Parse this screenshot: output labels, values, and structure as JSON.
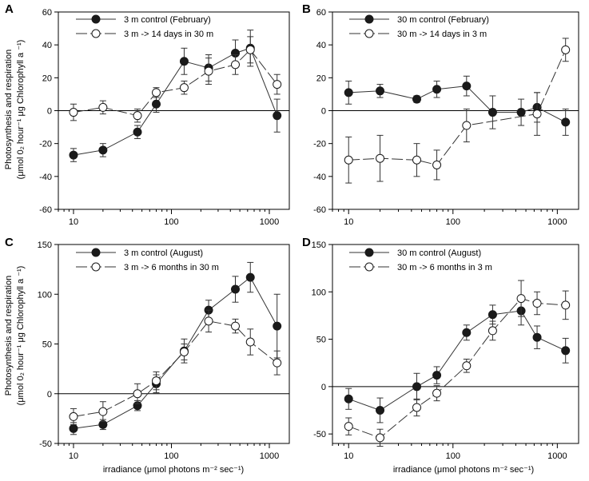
{
  "chart_data": [
    {
      "panel": "A",
      "type": "line",
      "xscale": "log",
      "xlim": [
        7,
        1600
      ],
      "ylim": [
        -60,
        60
      ],
      "xticks": [
        10,
        100,
        1000
      ],
      "xtick_labels": [
        "10",
        "100",
        "1000"
      ],
      "yticks": [
        -60,
        -40,
        -20,
        0,
        20,
        40,
        60
      ],
      "ytick_labels": [
        "-60",
        "-40",
        "-20",
        "0",
        "20",
        "40",
        "60"
      ],
      "series": [
        {
          "name": "3 m control (February)",
          "marker": "filled",
          "line": "solid",
          "x": [
            10,
            20,
            45,
            70,
            135,
            240,
            450,
            640,
            1200
          ],
          "y": [
            -27,
            -24,
            -13,
            4,
            30,
            26,
            35,
            38,
            -3
          ],
          "err": [
            4,
            4,
            4,
            5,
            8,
            8,
            8,
            11,
            10
          ]
        },
        {
          "name": "3 m  -> 14 days in 30 m",
          "marker": "open",
          "line": "dashed",
          "x": [
            10,
            20,
            45,
            70,
            135,
            240,
            450,
            640,
            1200
          ],
          "y": [
            -1,
            2,
            -3,
            11,
            14,
            24,
            28,
            37,
            16
          ],
          "err": [
            5,
            4,
            4,
            3,
            4,
            8,
            6,
            8,
            6
          ]
        }
      ]
    },
    {
      "panel": "B",
      "type": "line",
      "xscale": "log",
      "xlim": [
        7,
        1600
      ],
      "ylim": [
        -60,
        60
      ],
      "xticks": [
        10,
        100,
        1000
      ],
      "xtick_labels": [
        "10",
        "100",
        "1000"
      ],
      "yticks": [
        -60,
        -40,
        -20,
        0,
        20,
        40,
        60
      ],
      "ytick_labels": [
        "-60",
        "-40",
        "-20",
        "0",
        "20",
        "40",
        "60"
      ],
      "series": [
        {
          "name": "30 m control (February)",
          "marker": "filled",
          "line": "solid",
          "x": [
            10,
            20,
            45,
            70,
            135,
            240,
            450,
            640,
            1200
          ],
          "y": [
            11,
            12,
            7,
            13,
            15,
            -1,
            -1,
            2,
            -7
          ],
          "err": [
            7,
            4,
            2,
            5,
            6,
            10,
            8,
            9,
            8
          ]
        },
        {
          "name": "30 m -> 14 days in 3 m",
          "marker": "open",
          "line": "dashed",
          "x": [
            10,
            20,
            45,
            70,
            135,
            640,
            1200
          ],
          "y": [
            -30,
            -29,
            -30,
            -33,
            -9,
            -2,
            37
          ],
          "err": [
            14,
            14,
            10,
            9,
            10,
            13,
            7
          ]
        }
      ]
    },
    {
      "panel": "C",
      "type": "line",
      "xscale": "log",
      "xlim": [
        7,
        1600
      ],
      "ylim": [
        -50,
        150
      ],
      "xticks": [
        10,
        100,
        1000
      ],
      "xtick_labels": [
        "10",
        "100",
        "1000"
      ],
      "yticks": [
        -50,
        0,
        50,
        100,
        150
      ],
      "ytick_labels": [
        "-50",
        "0",
        "50",
        "100",
        "150"
      ],
      "series": [
        {
          "name": "3 m control (August)",
          "marker": "filled",
          "line": "solid",
          "x": [
            10,
            20,
            45,
            70,
            135,
            240,
            450,
            640,
            1200
          ],
          "y": [
            -35,
            -31,
            -12,
            10,
            43,
            84,
            105,
            117,
            68
          ],
          "err": [
            6,
            5,
            5,
            9,
            12,
            10,
            13,
            15,
            32
          ]
        },
        {
          "name": "3 m -> 6 months in 30 m",
          "marker": "open",
          "line": "dashed",
          "x": [
            10,
            20,
            45,
            70,
            135,
            240,
            450,
            640,
            1200
          ],
          "y": [
            -23,
            -18,
            0,
            13,
            42,
            73,
            68,
            52,
            31
          ],
          "err": [
            8,
            10,
            10,
            9,
            8,
            11,
            7,
            13,
            12
          ]
        }
      ]
    },
    {
      "panel": "D",
      "type": "line",
      "xscale": "log",
      "xlim": [
        7,
        1600
      ],
      "ylim": [
        -60,
        150
      ],
      "xticks": [
        10,
        100,
        1000
      ],
      "xtick_labels": [
        "10",
        "100",
        "1000"
      ],
      "yticks": [
        -50,
        0,
        50,
        100,
        150
      ],
      "ytick_labels": [
        "-50",
        "0",
        "50",
        "100",
        "150"
      ],
      "series": [
        {
          "name": "30 m control (August)",
          "marker": "filled",
          "line": "solid",
          "x": [
            10,
            20,
            45,
            70,
            135,
            240,
            450,
            640,
            1200
          ],
          "y": [
            -13,
            -25,
            0,
            12,
            57,
            76,
            80,
            52,
            38
          ],
          "err": [
            11,
            13,
            14,
            9,
            8,
            10,
            15,
            12,
            13
          ]
        },
        {
          "name": "30 m -> 6 months in 3 m",
          "marker": "open",
          "line": "dashed",
          "x": [
            10,
            20,
            45,
            70,
            135,
            240,
            450,
            640,
            1200
          ],
          "y": [
            -42,
            -54,
            -22,
            -7,
            22,
            59,
            93,
            88,
            86
          ],
          "err": [
            9,
            9,
            9,
            8,
            7,
            10,
            19,
            12,
            15
          ]
        }
      ]
    }
  ],
  "ylabel_top_line1": "Photosynthesis and respiration",
  "ylabel_top_line2": "(μmol 0₂ hour⁻¹ μg Chlorophyll a ⁻¹)",
  "ylabel_bottom_line1": "Photosynthesis and respiration",
  "ylabel_bottom_line2": "(μmol 0₂ hour⁻¹ μg Chlorophyll a ⁻¹)",
  "xlabel_left": "irradiance (μmol photons m⁻² sec⁻¹)",
  "xlabel_right": "irradiance (μmol photons m⁻² sec⁻¹)"
}
